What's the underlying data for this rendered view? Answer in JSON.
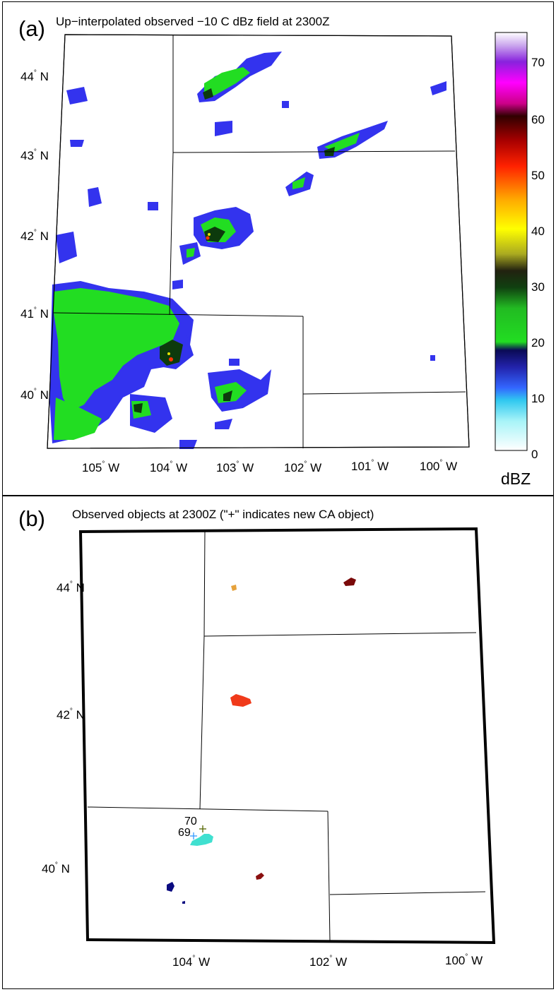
{
  "panel_a": {
    "label": "(a)",
    "title": "Up−interpolated observed −10 C dBz field at 2300Z",
    "lat_labels": [
      "44",
      "43",
      "42",
      "41",
      "40"
    ],
    "lat_suffix": "N",
    "lon_labels": [
      "105",
      "104",
      "103",
      "102",
      "101",
      "100"
    ],
    "lon_suffix": "W",
    "colorbar": {
      "ticks": [
        "70",
        "60",
        "50",
        "40",
        "30",
        "20",
        "10",
        "0"
      ],
      "unit": "dBZ",
      "range": [
        0,
        75
      ]
    }
  },
  "panel_b": {
    "label": "(b)",
    "title": "Observed objects at 2300Z (\"+\" indicates new CA object)",
    "lat_labels": [
      "44",
      "42",
      "40"
    ],
    "lat_suffix": "N",
    "lon_labels": [
      "104",
      "102",
      "100"
    ],
    "lon_suffix": "W",
    "object_labels": [
      "70",
      "69"
    ],
    "new_object_marker": "+"
  },
  "colors": {
    "dbz_blue": "#3333ee",
    "dbz_green": "#22dd22",
    "dbz_dark": "#0d3a0d",
    "obj_orange": "#e6a23c",
    "obj_darkred": "#7a0a0a",
    "obj_red": "#f03a1a",
    "obj_cyan": "#40e0d0",
    "obj_navy": "#0a0a80",
    "obj_maroon": "#8a0f0f"
  }
}
